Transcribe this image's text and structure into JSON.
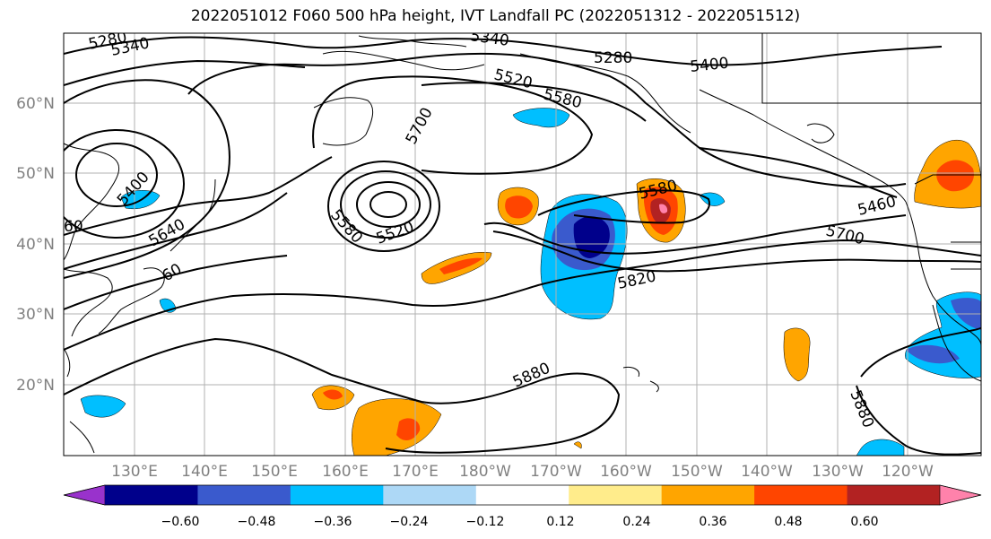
{
  "title": "2022051012 F060 500 hPa height, IVT Landfall PC (2022051312 - 2022051512)",
  "lat_labels": [
    "60°N",
    "50°N",
    "40°N",
    "30°N",
    "20°N"
  ],
  "lon_labels": [
    "130°E",
    "140°E",
    "150°E",
    "160°E",
    "170°E",
    "180°W",
    "170°W",
    "160°W",
    "150°W",
    "140°W",
    "130°W",
    "120°W"
  ],
  "colorbar": {
    "ticks": [
      "−0.60",
      "−0.48",
      "−0.36",
      "−0.24",
      "−0.12",
      "0.12",
      "0.24",
      "0.36",
      "0.48",
      "0.60"
    ],
    "colors": [
      "#9932cc",
      "#00008b",
      "#3a5acd",
      "#00bfff",
      "#add8f6",
      "#ffffff",
      "#ffec8b",
      "#ffa500",
      "#ff4500",
      "#b22222",
      "#ff82ab"
    ]
  },
  "contour_labels": [
    "5280",
    "5340",
    "5340",
    "5280",
    "5400",
    "5520",
    "5580",
    "5700",
    "5400",
    "5640",
    "5580",
    "5520",
    "60",
    "5580",
    "5460",
    "5700",
    "5820",
    "5880",
    "5880",
    "60"
  ],
  "colors": {
    "contour": "#000000",
    "coast": "#000000",
    "grid": "#b0b0b0"
  }
}
